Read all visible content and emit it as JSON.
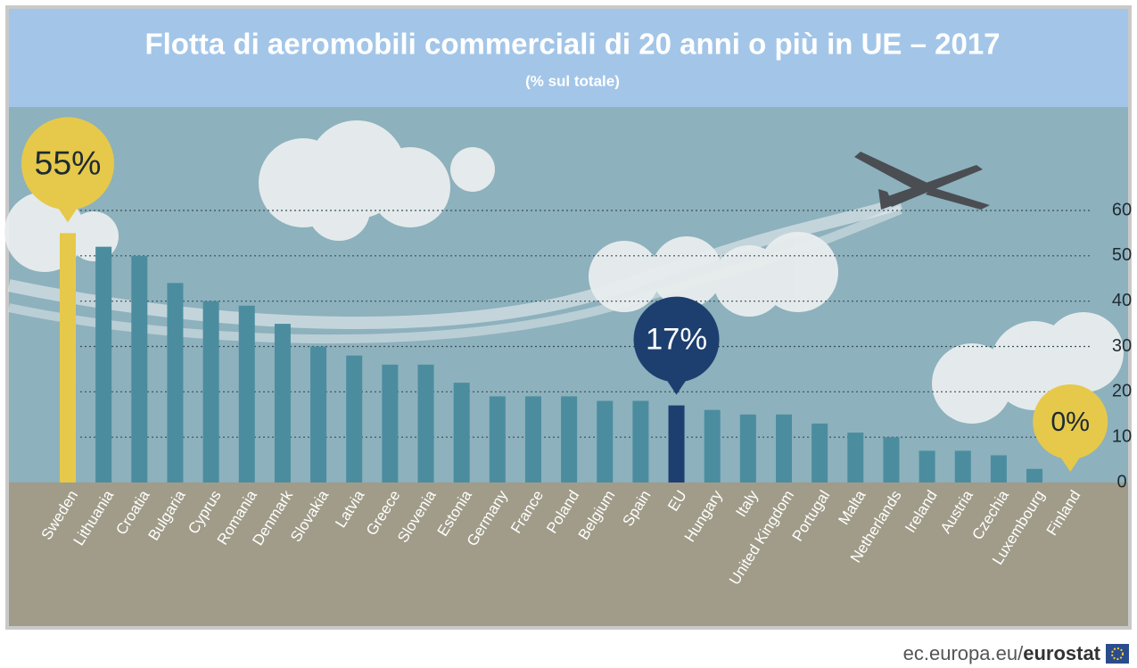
{
  "chart_data": {
    "type": "bar",
    "title": "Flotta di aeromobili commerciali di 20 anni o più in UE – 2017",
    "subtitle": "(% sul totale)",
    "categories": [
      "Sweden",
      "Lithuania",
      "Croatia",
      "Bulgaria",
      "Cyprus",
      "Romania",
      "Denmark",
      "Slovakia",
      "Latvia",
      "Greece",
      "Slovenia",
      "Estonia",
      "Germany",
      "France",
      "Poland",
      "Belgium",
      "Spain",
      "EU",
      "Hungary",
      "Italy",
      "United Kingdom",
      "Portugal",
      "Malta",
      "Netherlands",
      "Ireland",
      "Austria",
      "Czechia",
      "Luxembourg",
      "Finland"
    ],
    "values": [
      55,
      52,
      50,
      44,
      40,
      39,
      35,
      30,
      28,
      26,
      26,
      22,
      19,
      19,
      19,
      18,
      18,
      17,
      16,
      15,
      15,
      13,
      11,
      10,
      7,
      7,
      6,
      3,
      0
    ],
    "value_labels": [
      "55%",
      null,
      null,
      null,
      null,
      null,
      null,
      null,
      null,
      null,
      null,
      null,
      null,
      null,
      null,
      null,
      null,
      "17%",
      null,
      null,
      null,
      null,
      null,
      null,
      null,
      null,
      null,
      null,
      "0%"
    ],
    "colors": [
      "#e6c94a",
      "#4b8d9f",
      "#4b8d9f",
      "#4b8d9f",
      "#4b8d9f",
      "#4b8d9f",
      "#4b8d9f",
      "#4b8d9f",
      "#4b8d9f",
      "#4b8d9f",
      "#4b8d9f",
      "#4b8d9f",
      "#4b8d9f",
      "#4b8d9f",
      "#4b8d9f",
      "#4b8d9f",
      "#4b8d9f",
      "#1d3f6f",
      "#4b8d9f",
      "#4b8d9f",
      "#4b8d9f",
      "#4b8d9f",
      "#4b8d9f",
      "#4b8d9f",
      "#4b8d9f",
      "#4b8d9f",
      "#4b8d9f",
      "#4b8d9f",
      "#e6c94a"
    ],
    "ylim": [
      0,
      60
    ],
    "yticks": [
      0,
      10,
      20,
      30,
      40,
      50,
      60
    ],
    "grid": true,
    "source": "ec.europa.eu/",
    "source_brand": "eurostat"
  }
}
